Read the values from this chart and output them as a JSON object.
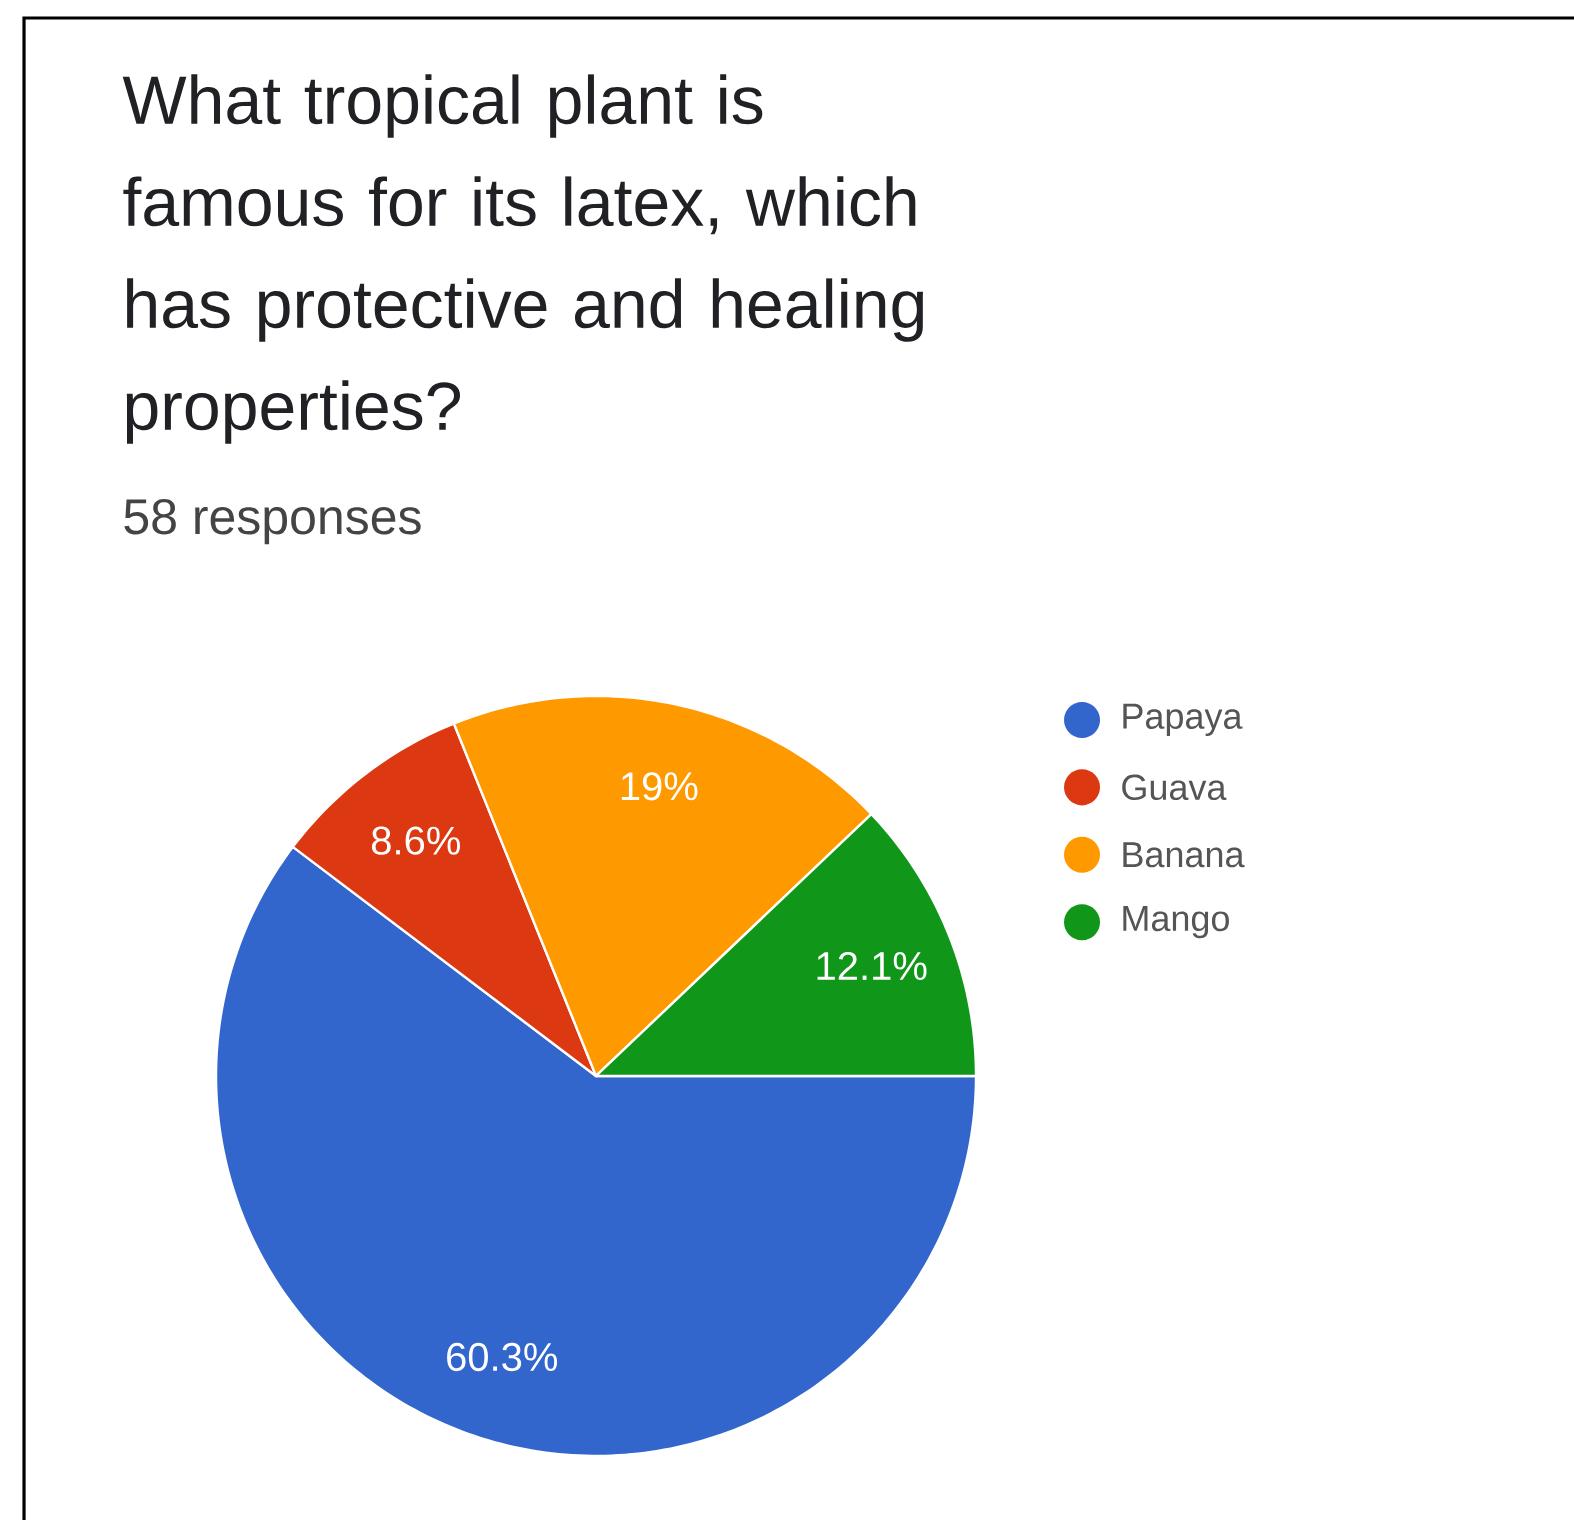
{
  "chart_data": {
    "type": "pie",
    "title": "What tropical plant is famous for its latex, which has protective and healing properties?",
    "subtitle": "58 responses",
    "categories": [
      "Papaya",
      "Guava",
      "Banana",
      "Mango"
    ],
    "values": [
      60.3,
      8.6,
      19,
      12.1
    ],
    "colors": [
      "#3366cc",
      "#dc3912",
      "#ff9900",
      "#109618"
    ],
    "value_labels": [
      "60.3%",
      "8.6%",
      "19%",
      "12.1%"
    ],
    "legend": "right"
  }
}
